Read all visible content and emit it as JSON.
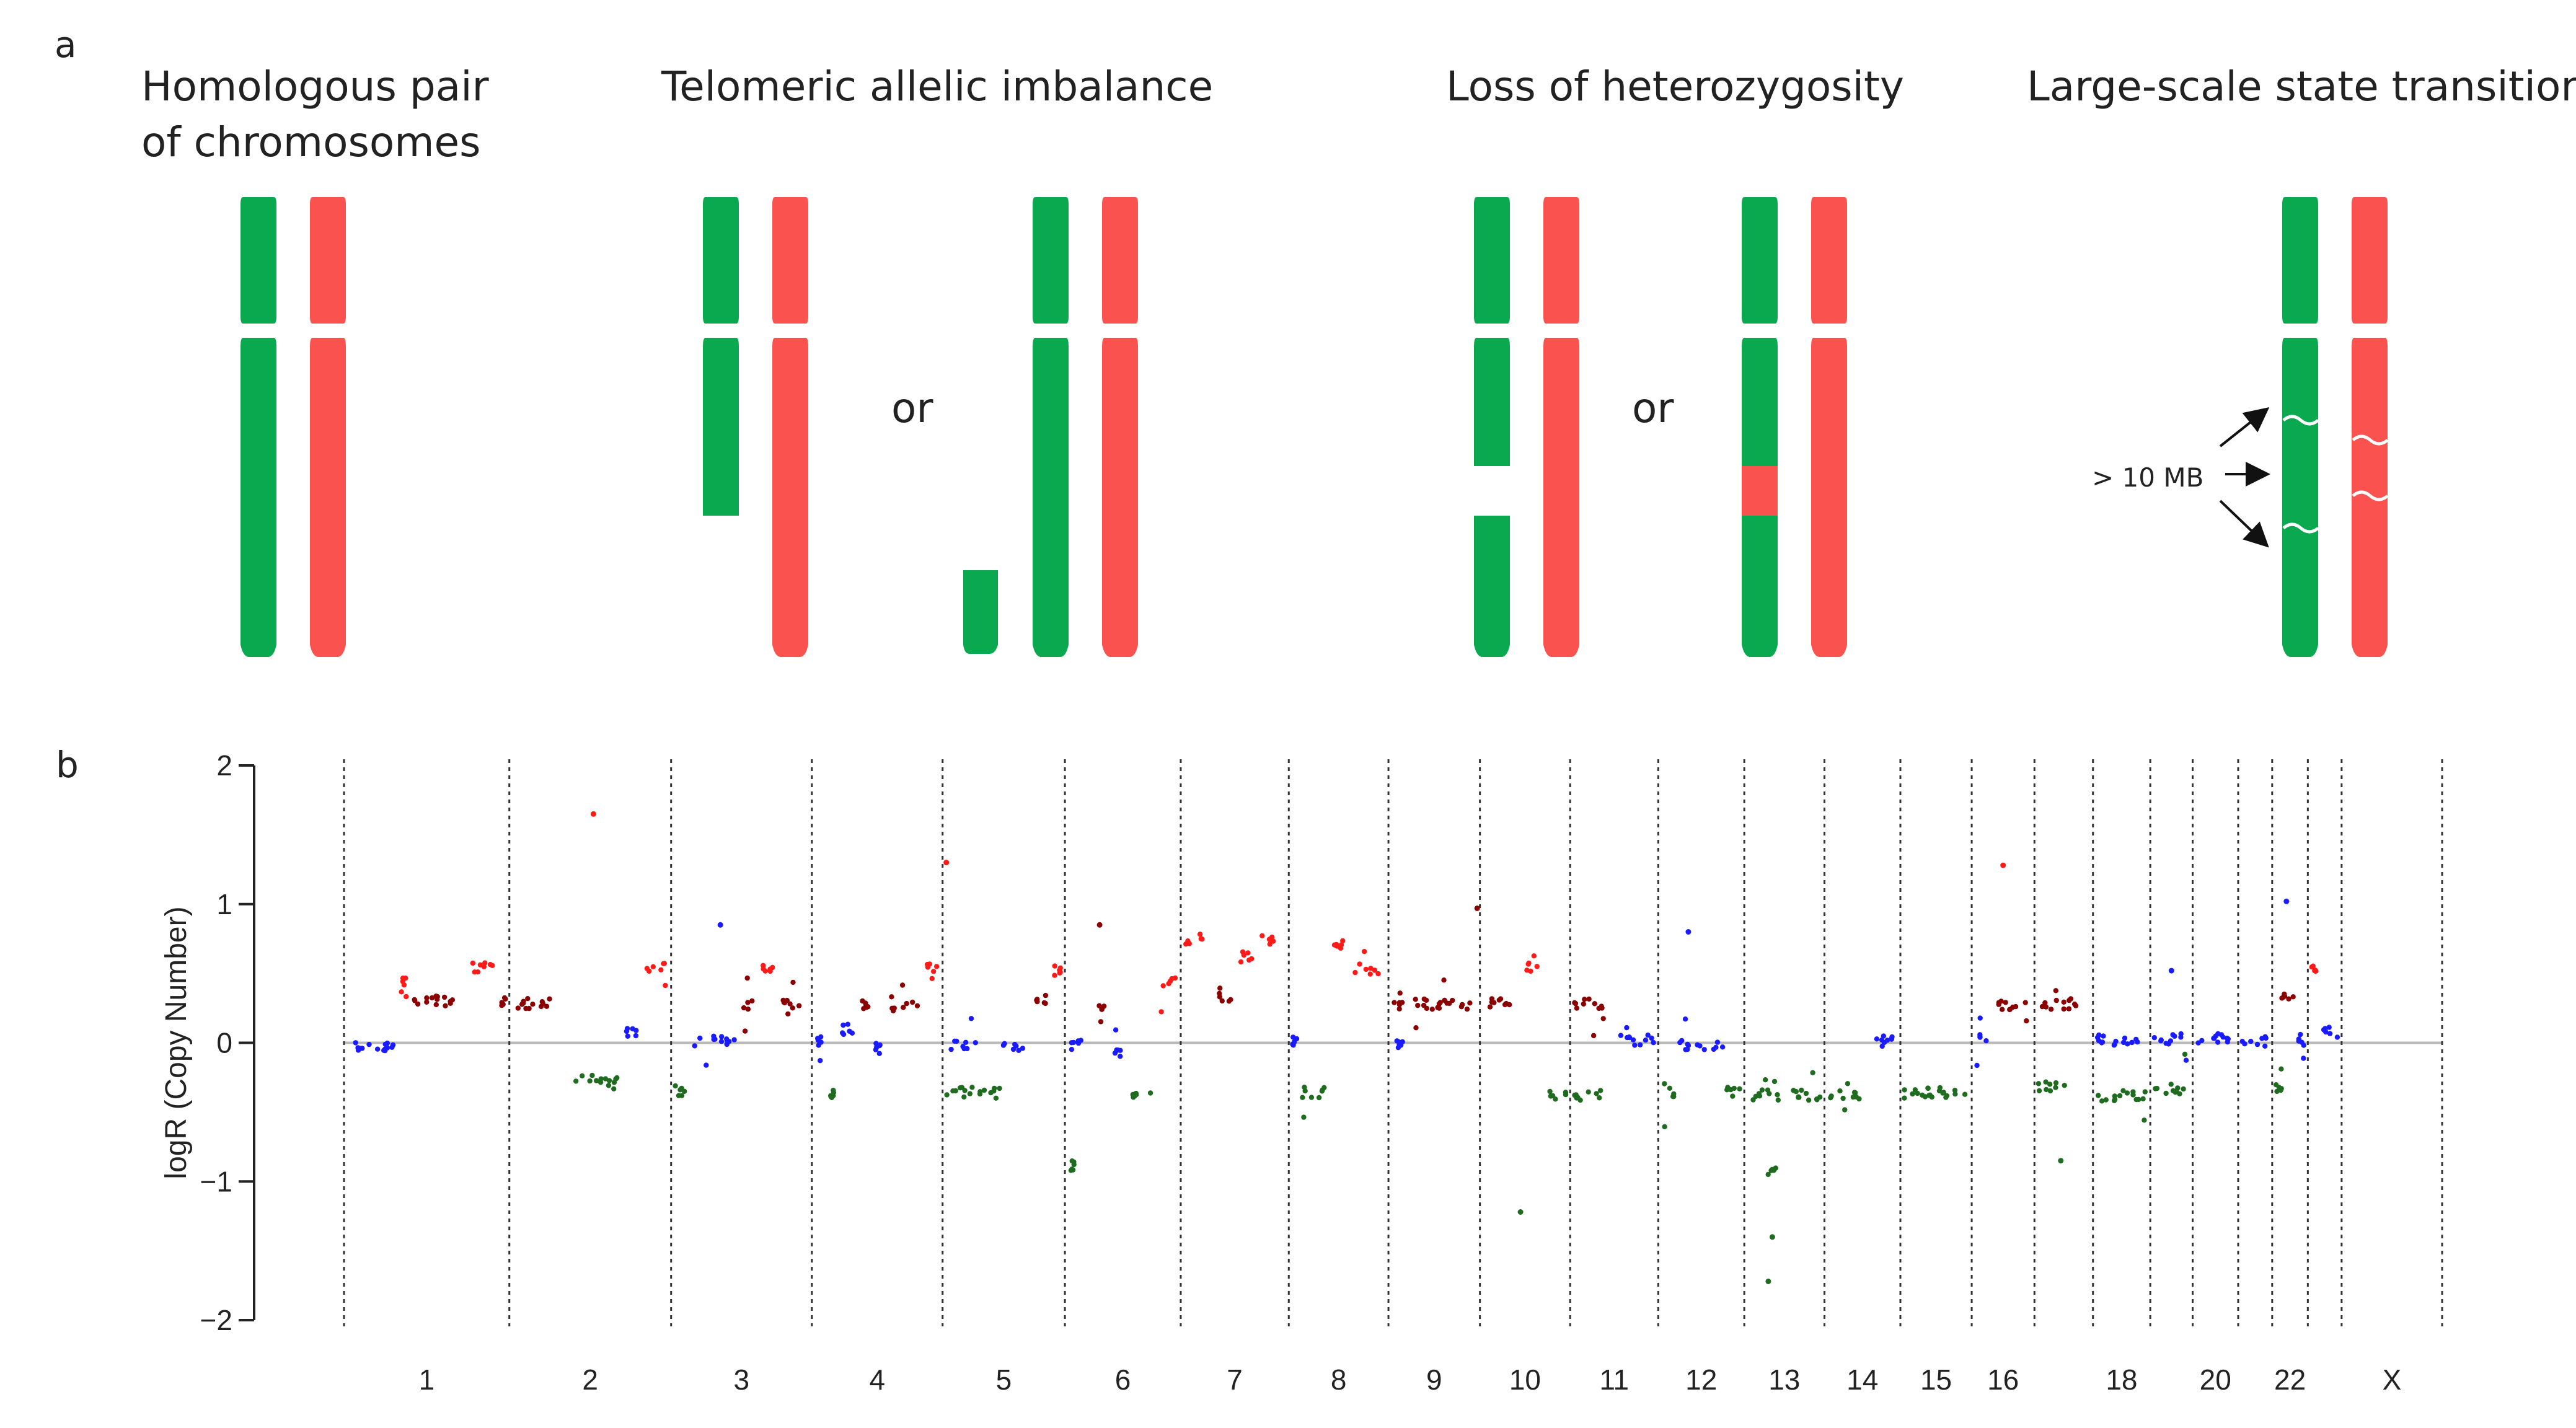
{
  "panel_a": {
    "letter": "a",
    "titles": {
      "homologous_line1": "Homologous pair",
      "homologous_line2": "of chromosomes",
      "telomeric": "Telomeric allelic imbalance",
      "loh": "Loss of heterozygosity",
      "lst": "Large-scale state transition"
    },
    "or_label": "or",
    "lst_annotation": "> 10 MB",
    "colors": {
      "green": "#0aa84f",
      "red": "#f9524f"
    }
  },
  "panel_b": {
    "letter": "b",
    "chart_data": {
      "type": "scatter",
      "title": "",
      "xlabel": "",
      "ylabel": "logR (Copy Number)",
      "ylim": [
        -2,
        2
      ],
      "yticks": [
        "2",
        "1",
        "0",
        "−1",
        "−2"
      ],
      "grid": "vertical dashed chromosome boundaries, horizontal gray line at 0",
      "chromosome_labels": [
        "1",
        "2",
        "3",
        "4",
        "5",
        "6",
        "7",
        "8",
        "9",
        "10",
        "11",
        "12",
        "13",
        "14",
        "15",
        "16",
        "18",
        "20",
        "22",
        "X"
      ],
      "legend_colors": {
        "gain": "#ff1a1a",
        "moderate_gain": "#8b0000",
        "neutral": "#1a1aff",
        "loss": "#1f6b1f"
      },
      "segments": [
        {
          "chr": "1",
          "from": 0.0,
          "to": 0.32,
          "value": -0.03,
          "state": "neutral"
        },
        {
          "chr": "1",
          "from": 0.32,
          "to": 0.4,
          "value": 0.45,
          "state": "gain"
        },
        {
          "chr": "1",
          "from": 0.4,
          "to": 0.72,
          "value": 0.3,
          "state": "moderate_gain"
        },
        {
          "chr": "1",
          "from": 0.72,
          "to": 0.92,
          "value": 0.55,
          "state": "gain"
        },
        {
          "chr": "1",
          "from": 0.92,
          "to": 1.0,
          "value": 0.3,
          "state": "moderate_gain"
        },
        {
          "chr": "2",
          "from": 0.0,
          "to": 0.3,
          "value": 0.28,
          "state": "moderate_gain"
        },
        {
          "chr": "2",
          "from": 0.38,
          "to": 0.7,
          "value": -0.27,
          "state": "loss"
        },
        {
          "chr": "2",
          "from": 0.7,
          "to": 0.82,
          "value": 0.07,
          "state": "neutral"
        },
        {
          "chr": "2",
          "from": 0.82,
          "to": 1.0,
          "value": 0.55,
          "state": "gain"
        },
        {
          "chr": "3",
          "from": 0.0,
          "to": 0.14,
          "value": -0.35,
          "state": "loss"
        },
        {
          "chr": "3",
          "from": 0.14,
          "to": 0.48,
          "value": 0.01,
          "state": "neutral"
        },
        {
          "chr": "3",
          "from": 0.48,
          "to": 0.62,
          "value": 0.28,
          "state": "moderate_gain"
        },
        {
          "chr": "3",
          "from": 0.62,
          "to": 0.76,
          "value": 0.55,
          "state": "gain"
        },
        {
          "chr": "3",
          "from": 0.76,
          "to": 1.0,
          "value": 0.29,
          "state": "moderate_gain"
        },
        {
          "chr": "4",
          "from": 0.0,
          "to": 0.1,
          "value": 0.02,
          "state": "neutral"
        },
        {
          "chr": "4",
          "from": 0.1,
          "to": 0.2,
          "value": -0.38,
          "state": "loss"
        },
        {
          "chr": "4",
          "from": 0.2,
          "to": 0.34,
          "value": 0.1,
          "state": "neutral"
        },
        {
          "chr": "4",
          "from": 0.34,
          "to": 0.46,
          "value": 0.27,
          "state": "moderate_gain"
        },
        {
          "chr": "4",
          "from": 0.46,
          "to": 0.58,
          "value": -0.04,
          "state": "neutral"
        },
        {
          "chr": "4",
          "from": 0.58,
          "to": 0.84,
          "value": 0.26,
          "state": "moderate_gain"
        },
        {
          "chr": "4",
          "from": 0.84,
          "to": 1.0,
          "value": 0.54,
          "state": "gain"
        },
        {
          "chr": "5",
          "from": 0.0,
          "to": 0.3,
          "value": -0.02,
          "state": "neutral"
        },
        {
          "chr": "5",
          "from": 0.0,
          "to": 0.5,
          "value": -0.36,
          "state": "loss"
        },
        {
          "chr": "5",
          "from": 0.45,
          "to": 0.7,
          "value": -0.02,
          "state": "neutral"
        },
        {
          "chr": "5",
          "from": 0.7,
          "to": 0.88,
          "value": 0.32,
          "state": "moderate_gain"
        },
        {
          "chr": "5",
          "from": 0.88,
          "to": 1.0,
          "value": 0.52,
          "state": "gain"
        },
        {
          "chr": "6",
          "from": 0.0,
          "to": 0.18,
          "value": -0.01,
          "state": "neutral"
        },
        {
          "chr": "6",
          "from": 0.02,
          "to": 0.12,
          "value": -0.88,
          "state": "loss"
        },
        {
          "chr": "6",
          "from": 0.24,
          "to": 0.4,
          "value": 0.26,
          "state": "moderate_gain"
        },
        {
          "chr": "6",
          "from": 0.4,
          "to": 0.55,
          "value": -0.06,
          "state": "neutral"
        },
        {
          "chr": "6",
          "from": 0.55,
          "to": 0.8,
          "value": -0.38,
          "state": "loss"
        },
        {
          "chr": "6",
          "from": 0.8,
          "to": 1.0,
          "value": 0.45,
          "state": "gain"
        },
        {
          "chr": "7",
          "from": 0.0,
          "to": 0.25,
          "value": 0.75,
          "state": "gain"
        },
        {
          "chr": "7",
          "from": 0.25,
          "to": 0.5,
          "value": 0.32,
          "state": "moderate_gain"
        },
        {
          "chr": "7",
          "from": 0.5,
          "to": 0.7,
          "value": 0.62,
          "state": "gain"
        },
        {
          "chr": "7",
          "from": 0.7,
          "to": 0.9,
          "value": 0.75,
          "state": "gain"
        },
        {
          "chr": "8",
          "from": 0.0,
          "to": 0.12,
          "value": 0.02,
          "state": "neutral"
        },
        {
          "chr": "8",
          "from": 0.05,
          "to": 0.4,
          "value": -0.36,
          "state": "loss"
        },
        {
          "chr": "8",
          "from": 0.4,
          "to": 0.62,
          "value": 0.7,
          "state": "gain"
        },
        {
          "chr": "8",
          "from": 0.62,
          "to": 0.95,
          "value": 0.53,
          "state": "gain"
        },
        {
          "chr": "9",
          "from": 0.0,
          "to": 0.2,
          "value": 0.28,
          "state": "moderate_gain"
        },
        {
          "chr": "9",
          "from": 0.05,
          "to": 0.2,
          "value": -0.02,
          "state": "neutral"
        },
        {
          "chr": "9",
          "from": 0.2,
          "to": 1.0,
          "value": 0.28,
          "state": "moderate_gain"
        },
        {
          "chr": "10",
          "from": 0.0,
          "to": 0.4,
          "value": 0.28,
          "state": "moderate_gain"
        },
        {
          "chr": "10",
          "from": 0.4,
          "to": 0.7,
          "value": 0.55,
          "state": "gain"
        },
        {
          "chr": "10",
          "from": 0.7,
          "to": 1.0,
          "value": -0.38,
          "state": "loss"
        },
        {
          "chr": "11",
          "from": 0.0,
          "to": 0.4,
          "value": -0.38,
          "state": "loss"
        },
        {
          "chr": "11",
          "from": 0.0,
          "to": 0.5,
          "value": 0.28,
          "state": "moderate_gain"
        },
        {
          "chr": "11",
          "from": 0.5,
          "to": 1.0,
          "value": 0.02,
          "state": "neutral"
        },
        {
          "chr": "12",
          "from": 0.0,
          "to": 0.25,
          "value": -0.36,
          "state": "loss"
        },
        {
          "chr": "12",
          "from": 0.2,
          "to": 0.8,
          "value": -0.01,
          "state": "neutral"
        },
        {
          "chr": "12",
          "from": 0.75,
          "to": 1.0,
          "value": -0.36,
          "state": "loss"
        },
        {
          "chr": "13",
          "from": 0.0,
          "to": 1.0,
          "value": -0.38,
          "state": "loss"
        },
        {
          "chr": "13",
          "from": 0.25,
          "to": 0.45,
          "value": -0.92,
          "state": "loss"
        },
        {
          "chr": "14",
          "from": 0.0,
          "to": 0.55,
          "value": -0.38,
          "state": "loss"
        },
        {
          "chr": "14",
          "from": 0.55,
          "to": 1.0,
          "value": 0.01,
          "state": "neutral"
        },
        {
          "chr": "15",
          "from": 0.0,
          "to": 1.0,
          "value": -0.36,
          "state": "loss"
        },
        {
          "chr": "16",
          "from": 0.0,
          "to": 0.35,
          "value": 0.02,
          "state": "neutral"
        },
        {
          "chr": "16",
          "from": 0.35,
          "to": 1.0,
          "value": 0.27,
          "state": "moderate_gain"
        },
        {
          "chr": "17",
          "from": 0.0,
          "to": 0.6,
          "value": -0.32,
          "state": "loss"
        },
        {
          "chr": "17",
          "from": 0.0,
          "to": 0.8,
          "value": 0.28,
          "state": "moderate_gain"
        },
        {
          "chr": "18",
          "from": 0.0,
          "to": 1.0,
          "value": -0.38,
          "state": "loss"
        },
        {
          "chr": "18",
          "from": 0.0,
          "to": 1.0,
          "value": 0.02,
          "state": "neutral"
        },
        {
          "chr": "19",
          "from": 0.0,
          "to": 1.0,
          "value": -0.33,
          "state": "loss"
        },
        {
          "chr": "19",
          "from": 0.0,
          "to": 1.0,
          "value": 0.03,
          "state": "neutral"
        },
        {
          "chr": "20",
          "from": 0.0,
          "to": 1.0,
          "value": 0.03,
          "state": "neutral"
        },
        {
          "chr": "21",
          "from": 0.0,
          "to": 1.0,
          "value": 0.01,
          "state": "neutral"
        },
        {
          "chr": "22",
          "from": 0.0,
          "to": 0.5,
          "value": -0.32,
          "state": "loss"
        },
        {
          "chr": "22",
          "from": 0.0,
          "to": 0.7,
          "value": 0.35,
          "state": "moderate_gain"
        },
        {
          "chr": "22",
          "from": 0.6,
          "to": 1.0,
          "value": 0.02,
          "state": "neutral"
        },
        {
          "chr": "23",
          "from": 0.0,
          "to": 0.35,
          "value": 0.55,
          "state": "gain"
        },
        {
          "chr": "23",
          "from": 0.35,
          "to": 1.0,
          "value": 0.08,
          "state": "neutral"
        }
      ],
      "outliers": [
        {
          "chr": "2",
          "pos": 0.52,
          "value": 1.65,
          "state": "gain"
        },
        {
          "chr": "3",
          "pos": 0.35,
          "value": 0.85,
          "state": "neutral"
        },
        {
          "chr": "5",
          "pos": 0.03,
          "value": 1.3,
          "state": "gain"
        },
        {
          "chr": "6",
          "pos": 0.3,
          "value": 0.85,
          "state": "moderate_gain"
        },
        {
          "chr": "9",
          "pos": 0.97,
          "value": 0.97,
          "state": "moderate_gain"
        },
        {
          "chr": "10",
          "pos": 0.45,
          "value": -1.22,
          "state": "loss"
        },
        {
          "chr": "12",
          "pos": 0.35,
          "value": 0.8,
          "state": "neutral"
        },
        {
          "chr": "13",
          "pos": 0.3,
          "value": -1.72,
          "state": "loss"
        },
        {
          "chr": "13",
          "pos": 0.35,
          "value": -1.4,
          "state": "loss"
        },
        {
          "chr": "16",
          "pos": 0.5,
          "value": 1.28,
          "state": "gain"
        },
        {
          "chr": "19",
          "pos": 0.5,
          "value": 0.52,
          "state": "neutral"
        },
        {
          "chr": "22",
          "pos": 0.4,
          "value": 1.02,
          "state": "neutral"
        },
        {
          "chr": "17",
          "pos": 0.45,
          "value": -0.85,
          "state": "loss"
        }
      ]
    }
  }
}
